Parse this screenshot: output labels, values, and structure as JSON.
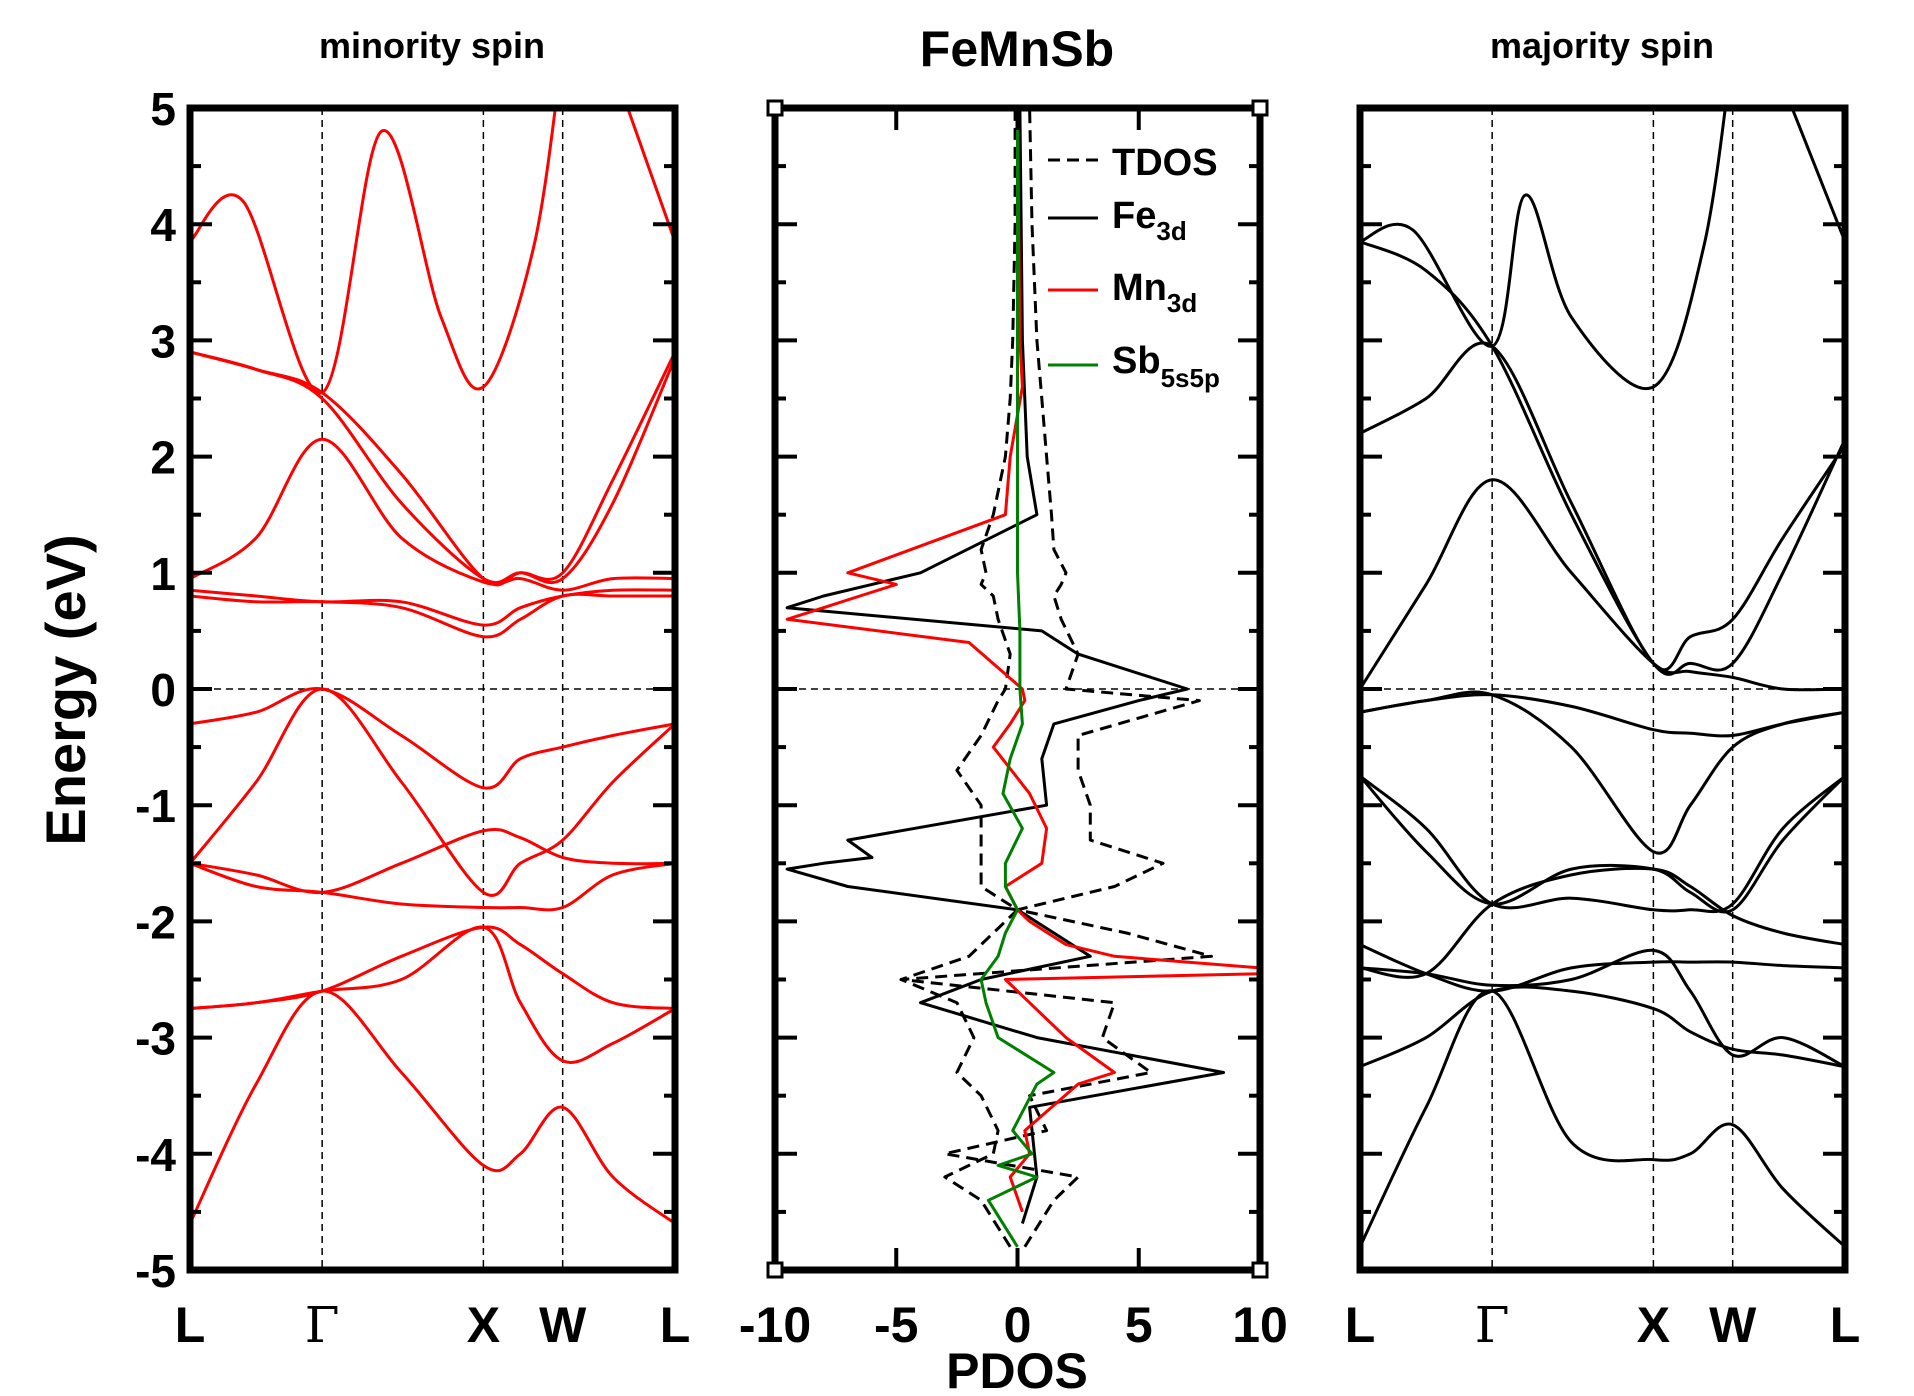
{
  "figure_title": "FeMnSb",
  "colors": {
    "minority": "#ff0000",
    "majority": "#000000",
    "tdos": "#000000",
    "fe": "#000000",
    "mn": "#ff0000",
    "sb": "#008000"
  },
  "chart_data": [
    {
      "id": "minority",
      "type": "line",
      "title": "minority spin",
      "ylabel": "Energy (eV)",
      "xlabel": "",
      "ylim": [
        -5,
        5
      ],
      "yticks": [
        -5,
        -4,
        -3,
        -2,
        -1,
        0,
        1,
        2,
        3,
        4,
        5
      ],
      "kpoints": [
        0,
        1,
        2.22,
        2.82,
        3.67
      ],
      "klabels": [
        "L",
        "Γ",
        "X",
        "W",
        "L"
      ],
      "fermi_level": 0,
      "series": [
        {
          "name": "band-1",
          "x": [
            0,
            0.5,
            1,
            1.6,
            2.22,
            2.5,
            2.82,
            3.2,
            3.67
          ],
          "y": [
            -4.6,
            -3.4,
            -2.6,
            -3.3,
            -4.1,
            -4.0,
            -3.6,
            -4.2,
            -4.6
          ]
        },
        {
          "name": "band-2",
          "x": [
            0,
            0.5,
            1,
            1.6,
            2.22,
            2.5,
            2.82,
            3.2,
            3.67
          ],
          "y": [
            -2.75,
            -2.7,
            -2.6,
            -2.3,
            -2.05,
            -2.2,
            -2.45,
            -2.7,
            -2.75
          ]
        },
        {
          "name": "band-3",
          "x": [
            0,
            0.5,
            1,
            1.6,
            2.22,
            2.5,
            2.82,
            3.2,
            3.67
          ],
          "y": [
            -2.75,
            -2.7,
            -2.6,
            -2.5,
            -2.05,
            -2.7,
            -3.2,
            -3.05,
            -2.75
          ]
        },
        {
          "name": "band-4",
          "x": [
            0,
            0.5,
            1,
            1.6,
            2.22,
            2.5,
            2.82,
            3.2,
            3.67
          ],
          "y": [
            -1.5,
            -1.7,
            -1.75,
            -1.85,
            -1.88,
            -1.88,
            -1.88,
            -1.6,
            -1.5
          ]
        },
        {
          "name": "band-5",
          "x": [
            0,
            0.5,
            1,
            1.6,
            2.22,
            2.5,
            2.82,
            3.2,
            3.67
          ],
          "y": [
            -1.5,
            -1.6,
            -1.75,
            -1.5,
            -1.22,
            -1.28,
            -1.45,
            -1.5,
            -1.5
          ]
        },
        {
          "name": "band-6",
          "x": [
            0,
            0.5,
            1,
            1.6,
            2.22,
            2.5,
            2.82,
            3.2,
            3.67
          ],
          "y": [
            -1.5,
            -0.8,
            0.0,
            -0.8,
            -1.75,
            -1.5,
            -1.3,
            -0.8,
            -0.3
          ]
        },
        {
          "name": "band-7",
          "x": [
            0,
            0.5,
            1,
            1.6,
            2.22,
            2.5,
            2.82,
            3.2,
            3.67
          ],
          "y": [
            -0.3,
            -0.2,
            0.0,
            -0.4,
            -0.85,
            -0.6,
            -0.5,
            -0.4,
            -0.3
          ]
        },
        {
          "name": "band-8",
          "x": [
            0,
            0.5,
            1,
            1.6,
            2.22,
            2.5,
            2.82,
            3.2,
            3.67
          ],
          "y": [
            0.8,
            0.75,
            0.75,
            0.7,
            0.45,
            0.6,
            0.8,
            0.8,
            0.8
          ]
        },
        {
          "name": "band-9",
          "x": [
            0,
            0.5,
            1,
            1.6,
            2.22,
            2.5,
            2.82,
            3.2,
            3.67
          ],
          "y": [
            0.85,
            0.8,
            0.75,
            0.75,
            0.55,
            0.7,
            0.8,
            0.85,
            0.85
          ]
        },
        {
          "name": "band-10",
          "x": [
            0,
            0.5,
            1,
            1.6,
            2.22,
            2.5,
            2.82,
            3.2,
            3.67
          ],
          "y": [
            0.95,
            1.3,
            2.15,
            1.3,
            0.92,
            0.95,
            0.85,
            0.95,
            0.95
          ]
        },
        {
          "name": "band-11",
          "x": [
            0,
            0.5,
            1,
            1.6,
            2.22,
            2.5,
            2.82,
            3.2,
            3.67
          ],
          "y": [
            2.9,
            2.75,
            2.5,
            1.6,
            0.95,
            1.0,
            0.95,
            1.6,
            2.85
          ]
        },
        {
          "name": "band-12",
          "x": [
            0,
            0.5,
            1,
            1.6,
            2.22,
            2.5,
            2.82,
            3.2,
            3.67
          ],
          "y": [
            2.9,
            2.75,
            2.55,
            1.85,
            0.95,
            1.0,
            1.0,
            1.8,
            2.9
          ]
        },
        {
          "name": "band-13",
          "x": [
            0,
            0.4,
            1,
            1.45,
            1.9,
            2.22,
            2.6,
            2.82
          ],
          "y": [
            3.85,
            4.2,
            2.55,
            4.8,
            3.2,
            2.6,
            3.8,
            5.5
          ]
        },
        {
          "name": "band-14",
          "x": [
            3.25,
            3.67
          ],
          "y": [
            5.2,
            3.85
          ]
        }
      ]
    },
    {
      "id": "pdos",
      "type": "line",
      "title": "FeMnSb",
      "xlabel": "PDOS",
      "ylabel": "",
      "xlim": [
        -10,
        10
      ],
      "ylim": [
        -5,
        5
      ],
      "xticks": [
        -10,
        -5,
        0,
        5,
        10
      ],
      "legend_position": "top-right",
      "series": [
        {
          "name": "TDOS",
          "legend_label": "TDOS",
          "style": "dashed",
          "y": [
            -4.8,
            -4.4,
            -4.2,
            -4.0,
            -3.8,
            -3.5,
            -3.3,
            -3.0,
            -2.7,
            -2.5,
            -2.3,
            -2.1,
            -1.9,
            -1.7,
            -1.5,
            -1.3,
            -1.0,
            -0.7,
            -0.4,
            -0.1,
            0.0,
            0.3,
            0.6,
            0.8,
            0.9,
            1.0,
            1.2,
            1.5,
            2.0,
            2.5,
            3.0,
            4.0,
            5.0
          ],
          "x": [
            0.3,
            1.5,
            2.5,
            -3.0,
            1.2,
            0.5,
            5.5,
            3.5,
            4.0,
            -4.8,
            8.0,
            4.5,
            0,
            4.0,
            6.0,
            3.0,
            3.0,
            2.5,
            2.5,
            7.5,
            2.0,
            2.5,
            1.8,
            1.5,
            1.8,
            2.0,
            1.5,
            1.4,
            1.2,
            1.0,
            0.8,
            0.6,
            0.5
          ]
        },
        {
          "name": "TDOS-left",
          "legend_label": "",
          "style": "dashed",
          "y": [
            -4.8,
            -4.4,
            -4.2,
            -4.0,
            -3.8,
            -3.5,
            -3.3,
            -3.0,
            -2.7,
            -2.5,
            -2.3,
            -2.1,
            -1.9,
            -1.7,
            -1.5,
            -1.3,
            -1.0,
            -0.7,
            -0.4,
            -0.1,
            0.0,
            0.3,
            0.6,
            0.8,
            0.9,
            1.0,
            1.2,
            1.5,
            2.0,
            2.5,
            3.0,
            4.0,
            5.0
          ],
          "x": [
            -0.3,
            -1.5,
            -3.0,
            -1.0,
            -0.8,
            -1.5,
            -2.5,
            -1.8,
            -2.5,
            -4.8,
            -2.0,
            -1.0,
            0,
            -1.5,
            -1.5,
            -1.5,
            -1.5,
            -2.5,
            -1.5,
            -0.8,
            -0.5,
            -0.3,
            -0.8,
            -1.0,
            -1.5,
            -1.3,
            -1.5,
            -1.0,
            -0.5,
            -0.3,
            -0.2,
            -0.1,
            -0.1
          ]
        },
        {
          "name": "Fe3d",
          "legend_label": "Fe",
          "legend_sub": "3d",
          "style": "solid",
          "y": [
            -4.6,
            -4.2,
            -3.6,
            -3.3,
            -3.0,
            -2.7,
            -2.5,
            -2.3,
            -2.1,
            -1.9,
            -1.7,
            -1.55,
            -1.5,
            -1.45,
            -1.3,
            -1.0,
            -0.6,
            -0.3,
            -0.1,
            0.0,
            0.3,
            0.5,
            0.7,
            0.8,
            0.9,
            1.0,
            1.5,
            2.0,
            3.0,
            5.0
          ],
          "x": [
            0.2,
            0.8,
            0.5,
            8.5,
            0.8,
            -4.0,
            -1.5,
            3.0,
            1.5,
            0,
            -7.0,
            -9.5,
            -8.0,
            -6.0,
            -7.0,
            1.2,
            1.0,
            1.5,
            5.0,
            7.0,
            2.5,
            1.0,
            -9.5,
            -8.0,
            -6.0,
            -4.0,
            0.8,
            0.4,
            0.2,
            0.1
          ]
        },
        {
          "name": "Mn3d",
          "legend_label": "Mn",
          "legend_sub": "3d",
          "style": "solid",
          "y": [
            -4.5,
            -4.2,
            -4.0,
            -3.8,
            -3.4,
            -3.3,
            -3.0,
            -2.8,
            -2.5,
            -2.45,
            -2.4,
            -2.3,
            -2.2,
            -2.0,
            -1.9,
            -1.7,
            -1.5,
            -1.2,
            -0.9,
            -0.5,
            -0.3,
            -0.1,
            0.0,
            0.4,
            0.6,
            0.7,
            0.8,
            0.9,
            1.0,
            1.5,
            2.0,
            2.6,
            3.0,
            5.0
          ],
          "x": [
            0.2,
            -0.3,
            0.5,
            0.3,
            2.5,
            4.0,
            2.0,
            1.0,
            -0.5,
            10,
            10,
            4.0,
            2.0,
            0.5,
            0,
            -0.5,
            1.0,
            1.2,
            0.5,
            -1.0,
            -0.3,
            0.3,
            0.2,
            -2.0,
            -9.5,
            -8.0,
            -6.5,
            -5.0,
            -7.0,
            -0.5,
            -0.3,
            0.2,
            0.1,
            0.0
          ]
        },
        {
          "name": "Sb5s5p",
          "legend_label": "Sb",
          "legend_sub": "5s5p",
          "style": "solid",
          "y": [
            -4.8,
            -4.4,
            -4.2,
            -4.1,
            -4.0,
            -3.8,
            -3.4,
            -3.3,
            -3.0,
            -2.7,
            -2.5,
            -2.3,
            -2.1,
            -1.9,
            -1.7,
            -1.5,
            -1.2,
            -0.9,
            -0.6,
            -0.3,
            0.0,
            0.5,
            1.0,
            2.0,
            3.0,
            5.0
          ],
          "x": [
            0,
            -1.2,
            0.8,
            -0.8,
            0.6,
            -0.2,
            0.8,
            1.5,
            -0.8,
            -1.3,
            -1.5,
            -0.8,
            -0.5,
            0,
            -0.5,
            -0.5,
            0.2,
            -0.6,
            -0.3,
            0.2,
            0.1,
            0.1,
            0.0,
            0.0,
            0.0,
            0.0
          ]
        }
      ]
    },
    {
      "id": "majority",
      "type": "line",
      "title": "majority spin",
      "ylabel": "",
      "xlabel": "",
      "ylim": [
        -5,
        5
      ],
      "kpoints": [
        0,
        1,
        2.22,
        2.82,
        3.67
      ],
      "klabels": [
        "L",
        "Γ",
        "X",
        "W",
        "L"
      ],
      "fermi_level": 0,
      "series": [
        {
          "name": "band-1",
          "x": [
            0,
            0.5,
            1,
            1.6,
            2.22,
            2.5,
            2.82,
            3.2,
            3.67
          ],
          "y": [
            -4.8,
            -3.6,
            -2.6,
            -3.9,
            -4.05,
            -4.0,
            -3.75,
            -4.3,
            -4.8
          ]
        },
        {
          "name": "band-2",
          "x": [
            0,
            0.5,
            1,
            1.6,
            2.22,
            2.5,
            2.82,
            3.2,
            3.67
          ],
          "y": [
            -3.25,
            -3.0,
            -2.6,
            -2.6,
            -2.75,
            -2.95,
            -3.1,
            -3.15,
            -3.25
          ]
        },
        {
          "name": "band-3",
          "x": [
            0,
            0.5,
            1,
            1.6,
            2.22,
            2.5,
            2.82,
            3.2,
            3.67
          ],
          "y": [
            -2.4,
            -2.45,
            -2.55,
            -2.5,
            -2.25,
            -2.6,
            -3.15,
            -3.0,
            -3.25
          ]
        },
        {
          "name": "band-4",
          "x": [
            0,
            0.5,
            1,
            1.6,
            2.22,
            2.5,
            2.82,
            3.2,
            3.67
          ],
          "y": [
            -2.2,
            -2.45,
            -2.6,
            -2.4,
            -2.35,
            -2.35,
            -2.35,
            -2.38,
            -2.4
          ]
        },
        {
          "name": "band-5",
          "x": [
            0,
            0.5,
            1,
            1.6,
            2.22,
            2.5,
            2.82,
            3.2,
            3.67
          ],
          "y": [
            -2.4,
            -2.45,
            -1.85,
            -1.6,
            -1.55,
            -1.7,
            -1.95,
            -2.1,
            -2.2
          ]
        },
        {
          "name": "band-6",
          "x": [
            0,
            0.5,
            1,
            1.6,
            2.22,
            2.5,
            2.82,
            3.2,
            3.67
          ],
          "y": [
            -0.75,
            -1.2,
            -1.85,
            -1.8,
            -1.9,
            -1.9,
            -1.85,
            -1.2,
            -0.75
          ]
        },
        {
          "name": "band-7",
          "x": [
            0,
            0.5,
            1,
            1.6,
            2.22,
            2.5,
            2.82,
            3.2,
            3.67
          ],
          "y": [
            -0.75,
            -1.4,
            -1.85,
            -1.55,
            -1.55,
            -1.75,
            -1.9,
            -1.3,
            -0.75
          ]
        },
        {
          "name": "band-8",
          "x": [
            0,
            0.5,
            1,
            1.6,
            2.22,
            2.5,
            2.82,
            3.2,
            3.67
          ],
          "y": [
            -0.2,
            -0.1,
            -0.05,
            -0.5,
            -1.4,
            -1.0,
            -0.5,
            -0.3,
            -0.2
          ]
        },
        {
          "name": "band-9",
          "x": [
            0,
            0.5,
            1,
            1.6,
            2.22,
            2.5,
            2.82,
            3.2,
            3.67
          ],
          "y": [
            -0.2,
            -0.1,
            -0.05,
            -0.15,
            -0.35,
            -0.38,
            -0.4,
            -0.3,
            -0.2
          ]
        },
        {
          "name": "band-10",
          "x": [
            0,
            0.5,
            1,
            1.6,
            2.22,
            2.5,
            2.82,
            3.2,
            3.67
          ],
          "y": [
            0.0,
            0.9,
            1.8,
            1.0,
            0.22,
            0.15,
            0.1,
            0.0,
            0.0
          ]
        },
        {
          "name": "band-11",
          "x": [
            0,
            0.5,
            1,
            1.6,
            2.22,
            2.5,
            2.82,
            3.2,
            3.67
          ],
          "y": [
            2.2,
            2.5,
            2.95,
            1.6,
            0.22,
            0.45,
            0.6,
            1.3,
            2.1
          ]
        },
        {
          "name": "band-12",
          "x": [
            0,
            0.5,
            1,
            1.6,
            2.22,
            2.5,
            2.82,
            3.2,
            3.67
          ],
          "y": [
            3.85,
            3.6,
            2.95,
            1.5,
            0.22,
            0.22,
            0.22,
            1.0,
            2.15
          ]
        },
        {
          "name": "band-13",
          "x": [
            0,
            0.4,
            1,
            1.25,
            1.6,
            2.22,
            2.6,
            2.82
          ],
          "y": [
            3.85,
            3.95,
            2.95,
            4.25,
            3.2,
            2.6,
            3.8,
            5.5
          ]
        },
        {
          "name": "band-14",
          "x": [
            3.2,
            3.67
          ],
          "y": [
            5.2,
            3.85
          ]
        }
      ]
    }
  ]
}
